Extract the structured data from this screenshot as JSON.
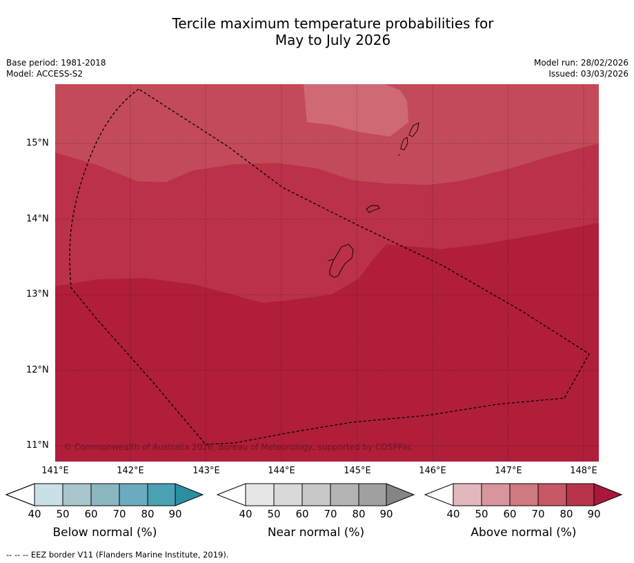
{
  "title": {
    "line1": "Tercile maximum temperature probabilities for",
    "line2": "May to July 2026"
  },
  "meta": {
    "base_period": "Base period: 1981-2018",
    "model": "Model: ACCESS-S2",
    "model_run": "Model run: 28/02/2026",
    "issued": "Issued: 03/03/2026"
  },
  "axes": {
    "lat_labels": [
      "15°N",
      "14°N",
      "13°N",
      "12°N",
      "11°N"
    ],
    "lon_labels": [
      "141°E",
      "142°E",
      "143°E",
      "144°E",
      "145°E",
      "146°E",
      "147°E",
      "148°E"
    ]
  },
  "copyright": "© Commonwealth of Australia 2026, Bureau of Meteorology, supported by COSPPac",
  "colorbars": [
    {
      "label": "Below normal (%)",
      "ticks": [
        "40",
        "50",
        "60",
        "70",
        "80",
        "90"
      ],
      "colors": [
        "#ffffff",
        "#c8e0e6",
        "#a8c6cb",
        "#8ab6c1",
        "#6aacbd",
        "#49a1b3",
        "#2b8fa2"
      ]
    },
    {
      "label": "Near normal (%)",
      "ticks": [
        "40",
        "50",
        "60",
        "70",
        "80",
        "90"
      ],
      "colors": [
        "#ffffff",
        "#e6e6e6",
        "#d9d9d9",
        "#c8c8c8",
        "#b4b4b4",
        "#a0a0a0",
        "#858585"
      ]
    },
    {
      "label": "Above normal (%)",
      "ticks": [
        "40",
        "50",
        "60",
        "70",
        "80",
        "90"
      ],
      "colors": [
        "#ffffff",
        "#e2b8be",
        "#d7969e",
        "#cf7981",
        "#c65764",
        "#b8344a",
        "#a9183a"
      ]
    }
  ],
  "map_colors": {
    "above_60_70": "#cf6a74",
    "above_70_80": "#c34a59",
    "above_80_90": "#bb3149",
    "above_90": "#b01e3a"
  },
  "footer": "--  --  -- EEZ border V11 (Flanders Marine Institute, 2019)."
}
